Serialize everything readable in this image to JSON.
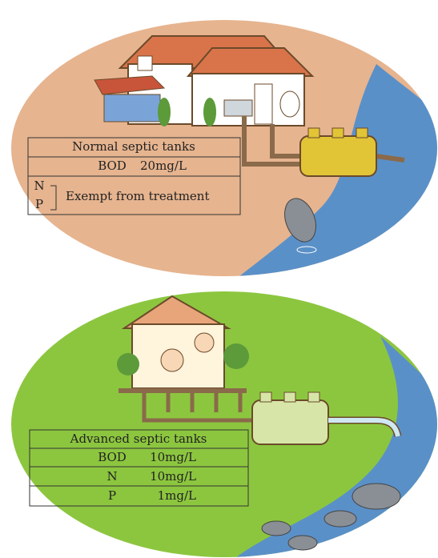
{
  "top": {
    "table": {
      "title": "Normal septic tanks",
      "bod": {
        "label": "BOD",
        "value": "20mg/L"
      },
      "np": {
        "n": "N",
        "p": "P",
        "note": "Exempt from treatment"
      }
    }
  },
  "bottom": {
    "table": {
      "title": "Advanced septic tanks",
      "rows": [
        [
          "BOD",
          "10mg/L"
        ],
        [
          "N",
          "10mg/L"
        ],
        [
          "P",
          "1mg/L"
        ]
      ]
    }
  }
}
